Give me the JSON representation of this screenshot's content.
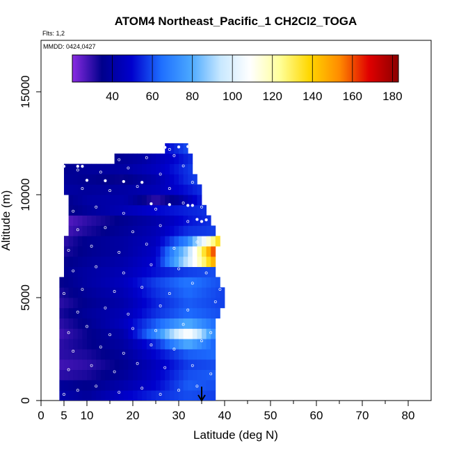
{
  "chart_data": {
    "type": "heatmap",
    "title": "ATOM4 Northeast_Pacific_1 CH2Cl2_TOGA",
    "flights_label": "Flts: 1,2",
    "date_label": "MMDD: 0424,0427",
    "xlabel": "Latitude (deg N)",
    "ylabel": "Altitude (m)",
    "xlim": [
      0,
      85
    ],
    "ylim": [
      0,
      17500
    ],
    "x_ticks": [
      0,
      5,
      10,
      20,
      30,
      40,
      50,
      60,
      70,
      80
    ],
    "y_ticks": [
      0,
      5000,
      10000,
      15000
    ],
    "colorbar": {
      "range": [
        20,
        183
      ],
      "ticks": [
        40,
        60,
        80,
        100,
        120,
        140,
        160,
        180
      ],
      "colors": [
        "#8a2be2",
        "#00008b",
        "#0000cd",
        "#1e6fff",
        "#4aa8ff",
        "#c8e8ff",
        "#ffffff",
        "#ffff99",
        "#ffd700",
        "#ff8c00",
        "#e00000",
        "#8b0000"
      ]
    },
    "profile_bands": [
      {
        "alt": [
          0,
          500
        ],
        "lat": [
          4,
          38
        ],
        "values": [
          [
            4,
            42
          ],
          [
            10,
            38
          ],
          [
            18,
            48
          ],
          [
            25,
            55
          ],
          [
            32,
            60
          ],
          [
            38,
            58
          ]
        ]
      },
      {
        "alt": [
          500,
          1000
        ],
        "lat": [
          4,
          38
        ],
        "values": [
          [
            4,
            38
          ],
          [
            10,
            35
          ],
          [
            18,
            42
          ],
          [
            25,
            50
          ],
          [
            32,
            62
          ],
          [
            38,
            60
          ]
        ]
      },
      {
        "alt": [
          1000,
          1500
        ],
        "lat": [
          4,
          38
        ],
        "values": [
          [
            4,
            30
          ],
          [
            10,
            32
          ],
          [
            18,
            38
          ],
          [
            25,
            48
          ],
          [
            32,
            60
          ],
          [
            38,
            62
          ]
        ]
      },
      {
        "alt": [
          1500,
          2000
        ],
        "lat": [
          4,
          38
        ],
        "values": [
          [
            4,
            28
          ],
          [
            10,
            30
          ],
          [
            18,
            36
          ],
          [
            25,
            46
          ],
          [
            32,
            58
          ],
          [
            38,
            60
          ]
        ]
      },
      {
        "alt": [
          2000,
          2500
        ],
        "lat": [
          4,
          38
        ],
        "values": [
          [
            4,
            30
          ],
          [
            10,
            32
          ],
          [
            18,
            38
          ],
          [
            25,
            50
          ],
          [
            32,
            62
          ],
          [
            38,
            64
          ]
        ]
      },
      {
        "alt": [
          2500,
          3000
        ],
        "lat": [
          4,
          38
        ],
        "values": [
          [
            4,
            30
          ],
          [
            10,
            34
          ],
          [
            18,
            40
          ],
          [
            25,
            55
          ],
          [
            32,
            80
          ],
          [
            38,
            62
          ]
        ]
      },
      {
        "alt": [
          3000,
          3500
        ],
        "lat": [
          4,
          38
        ],
        "values": [
          [
            4,
            28
          ],
          [
            10,
            34
          ],
          [
            18,
            42
          ],
          [
            25,
            70
          ],
          [
            32,
            110
          ],
          [
            38,
            70
          ]
        ]
      },
      {
        "alt": [
          3500,
          4000
        ],
        "lat": [
          4,
          38
        ],
        "values": [
          [
            4,
            30
          ],
          [
            10,
            36
          ],
          [
            18,
            46
          ],
          [
            25,
            62
          ],
          [
            32,
            80
          ],
          [
            38,
            64
          ]
        ]
      },
      {
        "alt": [
          4000,
          4500
        ],
        "lat": [
          4,
          39
        ],
        "values": [
          [
            4,
            32
          ],
          [
            10,
            38
          ],
          [
            18,
            44
          ],
          [
            25,
            56
          ],
          [
            32,
            64
          ],
          [
            39,
            60
          ]
        ]
      },
      {
        "alt": [
          4500,
          5000
        ],
        "lat": [
          4,
          40
        ],
        "values": [
          [
            4,
            30
          ],
          [
            10,
            36
          ],
          [
            18,
            42
          ],
          [
            25,
            54
          ],
          [
            32,
            62
          ],
          [
            40,
            58
          ]
        ]
      },
      {
        "alt": [
          5000,
          5500
        ],
        "lat": [
          4,
          40
        ],
        "values": [
          [
            4,
            32
          ],
          [
            10,
            38
          ],
          [
            18,
            44
          ],
          [
            25,
            56
          ],
          [
            32,
            64
          ],
          [
            40,
            58
          ]
        ]
      },
      {
        "alt": [
          5500,
          6000
        ],
        "lat": [
          4,
          39
        ],
        "values": [
          [
            4,
            34
          ],
          [
            10,
            40
          ],
          [
            18,
            46
          ],
          [
            25,
            58
          ],
          [
            32,
            66
          ],
          [
            39,
            60
          ]
        ]
      },
      {
        "alt": [
          6000,
          6500
        ],
        "lat": [
          5,
          38
        ],
        "values": [
          [
            5,
            36
          ],
          [
            10,
            40
          ],
          [
            18,
            44
          ],
          [
            25,
            52
          ],
          [
            32,
            58
          ],
          [
            38,
            60
          ]
        ]
      },
      {
        "alt": [
          6500,
          7000
        ],
        "lat": [
          5,
          38
        ],
        "values": [
          [
            5,
            34
          ],
          [
            10,
            38
          ],
          [
            18,
            42
          ],
          [
            25,
            50
          ],
          [
            32,
            95
          ],
          [
            38,
            150
          ]
        ]
      },
      {
        "alt": [
          7000,
          7500
        ],
        "lat": [
          5,
          38
        ],
        "values": [
          [
            5,
            32
          ],
          [
            10,
            36
          ],
          [
            18,
            40
          ],
          [
            25,
            48
          ],
          [
            32,
            90
          ],
          [
            38,
            165
          ]
        ]
      },
      {
        "alt": [
          7500,
          8000
        ],
        "lat": [
          5,
          39
        ],
        "values": [
          [
            5,
            30
          ],
          [
            10,
            36
          ],
          [
            18,
            40
          ],
          [
            25,
            46
          ],
          [
            32,
            70
          ],
          [
            39,
            140
          ]
        ]
      },
      {
        "alt": [
          8000,
          8500
        ],
        "lat": [
          6,
          38
        ],
        "values": [
          [
            6,
            28
          ],
          [
            10,
            32
          ],
          [
            18,
            38
          ],
          [
            25,
            44
          ],
          [
            32,
            56
          ],
          [
            38,
            58
          ]
        ]
      },
      {
        "alt": [
          8500,
          9000
        ],
        "lat": [
          6,
          37
        ],
        "values": [
          [
            6,
            26
          ],
          [
            10,
            30
          ],
          [
            18,
            36
          ],
          [
            25,
            42
          ],
          [
            32,
            52
          ],
          [
            37,
            56
          ]
        ]
      },
      {
        "alt": [
          9000,
          9500
        ],
        "lat": [
          6,
          36
        ],
        "values": [
          [
            6,
            34
          ],
          [
            10,
            38
          ],
          [
            18,
            44
          ],
          [
            25,
            50
          ],
          [
            32,
            54
          ],
          [
            36,
            56
          ]
        ]
      },
      {
        "alt": [
          9500,
          10000
        ],
        "lat": [
          6,
          35
        ],
        "values": [
          [
            6,
            36
          ],
          [
            10,
            40
          ],
          [
            18,
            42
          ],
          [
            25,
            30
          ],
          [
            30,
            38
          ],
          [
            35,
            54
          ]
        ]
      },
      {
        "alt": [
          10000,
          10500
        ],
        "lat": [
          5,
          35
        ],
        "values": [
          [
            5,
            40
          ],
          [
            10,
            38
          ],
          [
            18,
            40
          ],
          [
            25,
            44
          ],
          [
            32,
            52
          ],
          [
            35,
            56
          ]
        ]
      },
      {
        "alt": [
          10500,
          11000
        ],
        "lat": [
          5,
          34
        ],
        "values": [
          [
            5,
            38
          ],
          [
            10,
            36
          ],
          [
            18,
            34
          ],
          [
            25,
            42
          ],
          [
            32,
            56
          ],
          [
            34,
            58
          ]
        ]
      },
      {
        "alt": [
          11000,
          11500
        ],
        "lat": [
          5,
          33
        ],
        "values": [
          [
            5,
            36
          ],
          [
            10,
            38
          ],
          [
            18,
            40
          ],
          [
            25,
            46
          ],
          [
            33,
            58
          ]
        ]
      },
      {
        "alt": [
          11500,
          12000
        ],
        "lat": [
          16,
          33
        ],
        "values": [
          [
            16,
            36
          ],
          [
            22,
            40
          ],
          [
            28,
            48
          ],
          [
            33,
            56
          ]
        ]
      },
      {
        "alt": [
          12000,
          12500
        ],
        "lat": [
          27,
          32
        ],
        "values": [
          [
            27,
            50
          ],
          [
            30,
            56
          ],
          [
            32,
            60
          ]
        ]
      }
    ],
    "flight_track": [
      [
        5,
        11380
      ],
      [
        8,
        11380
      ],
      [
        9,
        11380
      ],
      [
        10,
        10700
      ],
      [
        14,
        10680
      ],
      [
        18,
        10640
      ],
      [
        22,
        10600
      ],
      [
        24,
        9560
      ],
      [
        28,
        9520
      ],
      [
        32,
        9480
      ],
      [
        33,
        9480
      ],
      [
        27,
        12300
      ],
      [
        30,
        12320
      ],
      [
        32,
        12340
      ],
      [
        34,
        8800
      ],
      [
        35,
        8700
      ],
      [
        36,
        8780
      ]
    ],
    "samples": [
      [
        5,
        300
      ],
      [
        8,
        500
      ],
      [
        12,
        700
      ],
      [
        17,
        400
      ],
      [
        22,
        600
      ],
      [
        26,
        300
      ],
      [
        30,
        500
      ],
      [
        34,
        700
      ],
      [
        6,
        1500
      ],
      [
        11,
        1700
      ],
      [
        16,
        1400
      ],
      [
        21,
        1800
      ],
      [
        27,
        1600
      ],
      [
        33,
        1700
      ],
      [
        37,
        1300
      ],
      [
        7,
        2400
      ],
      [
        13,
        2600
      ],
      [
        18,
        2300
      ],
      [
        24,
        2700
      ],
      [
        29,
        2500
      ],
      [
        35,
        2900
      ],
      [
        6,
        3300
      ],
      [
        10,
        3600
      ],
      [
        15,
        3200
      ],
      [
        20,
        3500
      ],
      [
        25,
        3400
      ],
      [
        31,
        3700
      ],
      [
        37,
        3300
      ],
      [
        8,
        4300
      ],
      [
        14,
        4500
      ],
      [
        19,
        4200
      ],
      [
        26,
        4600
      ],
      [
        32,
        4400
      ],
      [
        38,
        4800
      ],
      [
        40,
        4200
      ],
      [
        5,
        5200
      ],
      [
        9,
        5400
      ],
      [
        16,
        5300
      ],
      [
        22,
        5500
      ],
      [
        28,
        5200
      ],
      [
        33,
        5700
      ],
      [
        39,
        5400
      ],
      [
        7,
        6300
      ],
      [
        12,
        6500
      ],
      [
        18,
        6200
      ],
      [
        24,
        6600
      ],
      [
        30,
        6400
      ],
      [
        36,
        6200
      ],
      [
        6,
        7300
      ],
      [
        11,
        7500
      ],
      [
        17,
        7200
      ],
      [
        23,
        7600
      ],
      [
        29,
        7400
      ],
      [
        34,
        7700
      ],
      [
        8,
        8300
      ],
      [
        14,
        8400
      ],
      [
        20,
        8200
      ],
      [
        26,
        8500
      ],
      [
        32,
        8700
      ],
      [
        7,
        9200
      ],
      [
        12,
        9400
      ],
      [
        18,
        9100
      ],
      [
        25,
        9300
      ],
      [
        31,
        9600
      ],
      [
        35,
        9400
      ],
      [
        9,
        10300
      ],
      [
        15,
        10200
      ],
      [
        21,
        10400
      ],
      [
        28,
        10300
      ],
      [
        33,
        10600
      ],
      [
        8,
        11200
      ],
      [
        13,
        11100
      ],
      [
        19,
        11300
      ],
      [
        26,
        11000
      ],
      [
        31,
        11400
      ],
      [
        17,
        11700
      ],
      [
        23,
        11800
      ],
      [
        29,
        11900
      ],
      [
        28,
        12200
      ]
    ],
    "marker_latitude": 35
  }
}
